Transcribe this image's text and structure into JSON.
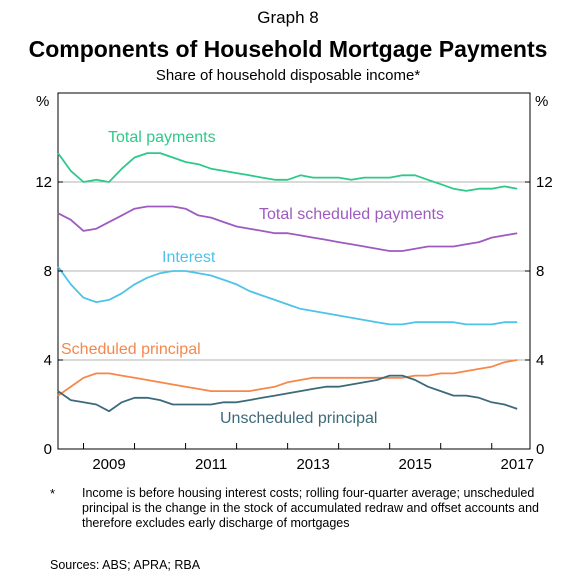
{
  "header": {
    "graph_label": "Graph 8",
    "title": "Components of Household Mortgage Payments",
    "subtitle": "Share of household disposable income*"
  },
  "chart_data": {
    "type": "line",
    "title": "Components of Household Mortgage Payments",
    "subtitle": "Share of household disposable income*",
    "ylabel_left": "%",
    "ylabel_right": "%",
    "ylim": [
      0,
      16
    ],
    "yticks": [
      0,
      4,
      8,
      12
    ],
    "xlim": [
      2008.5,
      2017.75
    ],
    "xticks": [
      2009,
      2011,
      2013,
      2015,
      2017
    ],
    "grid": true,
    "colors": {
      "total_payments": "#2ec98a",
      "total_scheduled": "#9d5bc0",
      "interest": "#4ec3e8",
      "scheduled_principal": "#f5884a",
      "unscheduled_principal": "#3d6a7a"
    },
    "series": [
      {
        "key": "total_payments",
        "name": "Total payments",
        "x": [
          2008.5,
          2008.75,
          2009.0,
          2009.25,
          2009.5,
          2009.75,
          2010.0,
          2010.25,
          2010.5,
          2010.75,
          2011.0,
          2011.25,
          2011.5,
          2011.75,
          2012.0,
          2012.25,
          2012.5,
          2012.75,
          2013.0,
          2013.25,
          2013.5,
          2013.75,
          2014.0,
          2014.25,
          2014.5,
          2014.75,
          2015.0,
          2015.25,
          2015.5,
          2015.75,
          2016.0,
          2016.25,
          2016.5,
          2016.75,
          2017.0,
          2017.25,
          2017.5
        ],
        "values": [
          13.3,
          12.5,
          12.0,
          12.1,
          12.0,
          12.6,
          13.1,
          13.3,
          13.3,
          13.1,
          12.9,
          12.8,
          12.6,
          12.5,
          12.4,
          12.3,
          12.2,
          12.1,
          12.1,
          12.3,
          12.2,
          12.2,
          12.2,
          12.1,
          12.2,
          12.2,
          12.2,
          12.3,
          12.3,
          12.1,
          11.9,
          11.7,
          11.6,
          11.7,
          11.7,
          11.8,
          11.7
        ]
      },
      {
        "key": "total_scheduled",
        "name": "Total scheduled payments",
        "x": [
          2008.5,
          2008.75,
          2009.0,
          2009.25,
          2009.5,
          2009.75,
          2010.0,
          2010.25,
          2010.5,
          2010.75,
          2011.0,
          2011.25,
          2011.5,
          2011.75,
          2012.0,
          2012.25,
          2012.5,
          2012.75,
          2013.0,
          2013.25,
          2013.5,
          2013.75,
          2014.0,
          2014.25,
          2014.5,
          2014.75,
          2015.0,
          2015.25,
          2015.5,
          2015.75,
          2016.0,
          2016.25,
          2016.5,
          2016.75,
          2017.0,
          2017.25,
          2017.5
        ],
        "values": [
          10.6,
          10.3,
          9.8,
          9.9,
          10.2,
          10.5,
          10.8,
          10.9,
          10.9,
          10.9,
          10.8,
          10.5,
          10.4,
          10.2,
          10.0,
          9.9,
          9.8,
          9.7,
          9.7,
          9.6,
          9.5,
          9.4,
          9.3,
          9.2,
          9.1,
          9.0,
          8.9,
          8.9,
          9.0,
          9.1,
          9.1,
          9.1,
          9.2,
          9.3,
          9.5,
          9.6,
          9.7
        ]
      },
      {
        "key": "interest",
        "name": "Interest",
        "x": [
          2008.5,
          2008.75,
          2009.0,
          2009.25,
          2009.5,
          2009.75,
          2010.0,
          2010.25,
          2010.5,
          2010.75,
          2011.0,
          2011.25,
          2011.5,
          2011.75,
          2012.0,
          2012.25,
          2012.5,
          2012.75,
          2013.0,
          2013.25,
          2013.5,
          2013.75,
          2014.0,
          2014.25,
          2014.5,
          2014.75,
          2015.0,
          2015.25,
          2015.5,
          2015.75,
          2016.0,
          2016.25,
          2016.5,
          2016.75,
          2017.0,
          2017.25,
          2017.5
        ],
        "values": [
          8.2,
          7.4,
          6.8,
          6.6,
          6.7,
          7.0,
          7.4,
          7.7,
          7.9,
          8.0,
          8.0,
          7.9,
          7.8,
          7.6,
          7.4,
          7.1,
          6.9,
          6.7,
          6.5,
          6.3,
          6.2,
          6.1,
          6.0,
          5.9,
          5.8,
          5.7,
          5.6,
          5.6,
          5.7,
          5.7,
          5.7,
          5.7,
          5.6,
          5.6,
          5.6,
          5.7,
          5.7
        ]
      },
      {
        "key": "scheduled_principal",
        "name": "Scheduled principal",
        "x": [
          2008.5,
          2008.75,
          2009.0,
          2009.25,
          2009.5,
          2009.75,
          2010.0,
          2010.25,
          2010.5,
          2010.75,
          2011.0,
          2011.25,
          2011.5,
          2011.75,
          2012.0,
          2012.25,
          2012.5,
          2012.75,
          2013.0,
          2013.25,
          2013.5,
          2013.75,
          2014.0,
          2014.25,
          2014.5,
          2014.75,
          2015.0,
          2015.25,
          2015.5,
          2015.75,
          2016.0,
          2016.25,
          2016.5,
          2016.75,
          2017.0,
          2017.25,
          2017.5
        ],
        "values": [
          2.4,
          2.8,
          3.2,
          3.4,
          3.4,
          3.3,
          3.2,
          3.1,
          3.0,
          2.9,
          2.8,
          2.7,
          2.6,
          2.6,
          2.6,
          2.6,
          2.7,
          2.8,
          3.0,
          3.1,
          3.2,
          3.2,
          3.2,
          3.2,
          3.2,
          3.2,
          3.2,
          3.2,
          3.3,
          3.3,
          3.4,
          3.4,
          3.5,
          3.6,
          3.7,
          3.9,
          4.0
        ]
      },
      {
        "key": "unscheduled_principal",
        "name": "Unscheduled principal",
        "x": [
          2008.5,
          2008.75,
          2009.0,
          2009.25,
          2009.5,
          2009.75,
          2010.0,
          2010.25,
          2010.5,
          2010.75,
          2011.0,
          2011.25,
          2011.5,
          2011.75,
          2012.0,
          2012.25,
          2012.5,
          2012.75,
          2013.0,
          2013.25,
          2013.5,
          2013.75,
          2014.0,
          2014.25,
          2014.5,
          2014.75,
          2015.0,
          2015.25,
          2015.5,
          2015.75,
          2016.0,
          2016.25,
          2016.5,
          2016.75,
          2017.0,
          2017.25,
          2017.5
        ],
        "values": [
          2.6,
          2.2,
          2.1,
          2.0,
          1.7,
          2.1,
          2.3,
          2.3,
          2.2,
          2.0,
          2.0,
          2.0,
          2.0,
          2.1,
          2.1,
          2.2,
          2.3,
          2.4,
          2.5,
          2.6,
          2.7,
          2.8,
          2.8,
          2.9,
          3.0,
          3.1,
          3.3,
          3.3,
          3.1,
          2.8,
          2.6,
          2.4,
          2.4,
          2.3,
          2.1,
          2.0,
          1.8
        ]
      }
    ]
  },
  "footnote": {
    "mark": "*",
    "text": "Income is before housing interest costs; rolling four-quarter average; unscheduled principal is the change in the stock of accumulated redraw and offset accounts and therefore excludes early discharge of mortgages"
  },
  "sources": "Sources:   ABS; APRA; RBA"
}
